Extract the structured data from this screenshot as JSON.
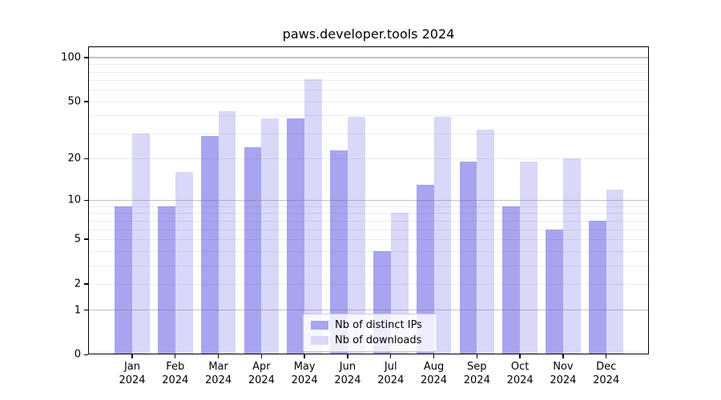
{
  "title": "paws.developer.tools 2024",
  "chart_data": {
    "type": "bar",
    "title": "paws.developer.tools 2024",
    "categories": [
      "Jan 2024",
      "Feb 2024",
      "Mar 2024",
      "Apr 2024",
      "May 2024",
      "Jun 2024",
      "Jul 2024",
      "Aug 2024",
      "Sep 2024",
      "Oct 2024",
      "Nov 2024",
      "Dec 2024"
    ],
    "series": [
      {
        "name": "Nb of distinct IPs",
        "color": "#a7a5f0",
        "values": [
          9,
          9,
          29,
          24,
          38,
          23,
          4,
          13,
          19,
          9,
          6,
          7
        ]
      },
      {
        "name": "Nb of downloads",
        "color": "#d9d8f9",
        "values": [
          30,
          16,
          43,
          38,
          71,
          39,
          8,
          39,
          32,
          19,
          20,
          12
        ]
      }
    ],
    "y_scale": "log1p",
    "y_ticks": [
      0,
      1,
      2,
      5,
      10,
      20,
      50,
      100
    ],
    "ylim": [
      0,
      119
    ],
    "xlabel": "",
    "ylabel": "",
    "grid": "horizontal major+minor",
    "legend_position": "lower center"
  }
}
